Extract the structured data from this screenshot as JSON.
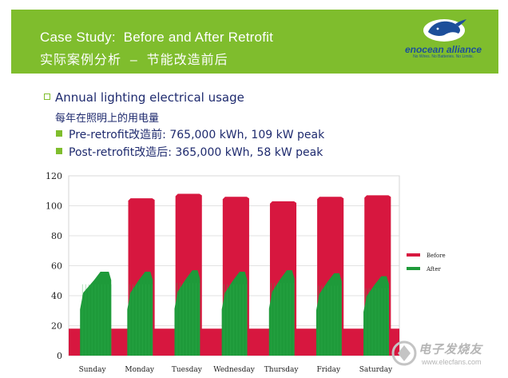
{
  "header": {
    "title": "Case Study:  Before and After Retrofit",
    "subtitle": "实际案例分析  –  节能改造前后",
    "logo_text": "enocean alliance",
    "logo_tagline": "No Wires. No Batteries. No Limits."
  },
  "bullets": {
    "main": "Annual lighting electrical usage",
    "main_cn": "每年在照明上的用电量",
    "sub": [
      {
        "label": "Pre-retrofit改造前: 765,000 kWh, 109 kW peak"
      },
      {
        "label": "Post-retrofit改造后: 365,000 kWh, 58 kW peak"
      }
    ]
  },
  "watermark": {
    "text": "电子发烧友",
    "url": "www.elecfans.com"
  },
  "colors": {
    "brand_green": "#7fbd2d",
    "text_navy": "#1e2a6e",
    "before": "#d7173f",
    "after": "#1e9a3a"
  },
  "chart_data": {
    "type": "area",
    "title": "",
    "xlabel": "",
    "ylabel": "",
    "ylim": [
      0,
      120
    ],
    "yticks": [
      0,
      20,
      40,
      60,
      80,
      100,
      120
    ],
    "categories": [
      "Sunday",
      "Monday",
      "Tuesday",
      "Wednesday",
      "Thursday",
      "Friday",
      "Saturday"
    ],
    "legend_position": "right",
    "series": [
      {
        "name": "Before",
        "color": "#d7173f",
        "baseline": 18,
        "daily_peak": [
          18,
          105,
          108,
          106,
          103,
          106,
          107
        ]
      },
      {
        "name": "After",
        "color": "#1e9a3a",
        "daily_peak": [
          56,
          56,
          57,
          56,
          57,
          55,
          53
        ]
      }
    ]
  }
}
